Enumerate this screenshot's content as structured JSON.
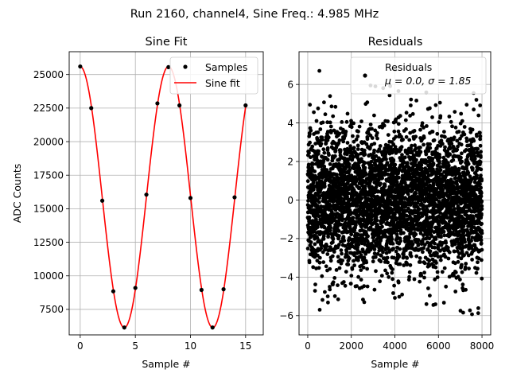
{
  "figure": {
    "suptitle": "Run 2160, channel4, Sine Freq.: 4.985 MHz"
  },
  "chart_data": [
    {
      "type": "scatter",
      "title": "Sine Fit",
      "xlabel": "Sample #",
      "ylabel": "ADC Counts",
      "xlim": [
        -1,
        16.6
      ],
      "ylim": [
        5600,
        26700
      ],
      "xticks": [
        0,
        5,
        10,
        15
      ],
      "yticks": [
        7500,
        10000,
        12500,
        15000,
        17500,
        20000,
        22500,
        25000
      ],
      "grid": true,
      "legend_position": "top-right",
      "series": [
        {
          "name": "Samples",
          "marker": "dot",
          "color": "#000000",
          "x": [
            0,
            1,
            2,
            3,
            4,
            5,
            6,
            7,
            8,
            9,
            10,
            11,
            12,
            13,
            14,
            15
          ],
          "y": [
            25600,
            22500,
            15600,
            8850,
            6150,
            9100,
            16050,
            22850,
            25550,
            22700,
            15800,
            8950,
            6150,
            9000,
            15850,
            22700
          ]
        },
        {
          "name": "Sine fit",
          "style": "line",
          "color": "#ff0000",
          "model": {
            "offset": 15870,
            "amplitude": 9730,
            "period_samples": 8.022,
            "phase_rad": 1.58
          }
        }
      ]
    },
    {
      "type": "scatter",
      "title": "Residuals",
      "xlabel": "Sample #",
      "ylabel": "",
      "xlim": [
        -400,
        8400
      ],
      "ylim": [
        -7,
        7.7
      ],
      "xticks": [
        0,
        2000,
        4000,
        6000,
        8000
      ],
      "yticks": [
        -6,
        -4,
        -2,
        0,
        2,
        4,
        6
      ],
      "grid": true,
      "legend_position": "top-right",
      "series": [
        {
          "name": "Residuals",
          "marker": "dot",
          "color": "#000000",
          "n_points": 8000,
          "mean": 0.0,
          "std": 1.85
        }
      ],
      "legend_stats": "μ = 0.0, σ = 1.85"
    }
  ]
}
